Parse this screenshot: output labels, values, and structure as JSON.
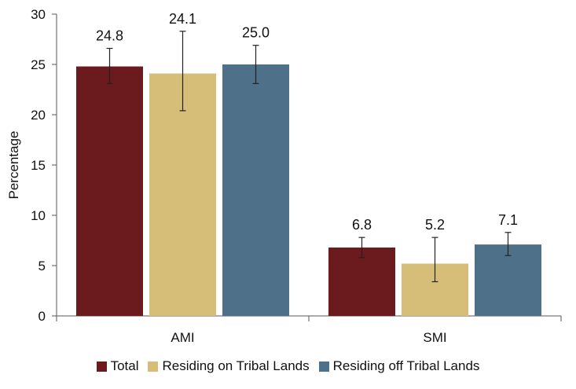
{
  "chart_data": {
    "type": "bar",
    "categories": [
      "AMI",
      "SMI"
    ],
    "series": [
      {
        "name": "Total",
        "color": "#6b1a1e",
        "values": [
          24.8,
          6.8
        ],
        "error_low": [
          23.1,
          5.8
        ],
        "error_high": [
          26.6,
          7.8
        ]
      },
      {
        "name": "Residing on Tribal Lands",
        "color": "#d6bd78",
        "values": [
          24.1,
          5.2
        ],
        "error_low": [
          20.4,
          3.4
        ],
        "error_high": [
          28.3,
          7.8
        ]
      },
      {
        "name": "Residing off Tribal Lands",
        "color": "#4e7089",
        "values": [
          25.0,
          7.1
        ],
        "error_low": [
          23.1,
          6.0
        ],
        "error_high": [
          26.9,
          8.3
        ]
      }
    ],
    "value_labels": [
      [
        "24.8",
        "6.8"
      ],
      [
        "24.1",
        "5.2"
      ],
      [
        "25.0",
        "7.1"
      ]
    ],
    "ylabel": "Percentage",
    "xlabel": "",
    "ylim": [
      0,
      30
    ],
    "yticks": [
      0,
      5,
      10,
      15,
      20,
      25,
      30
    ],
    "ytick_labels": [
      "0",
      "5",
      "10",
      "15",
      "20",
      "25",
      "30"
    ],
    "grid": false,
    "legend_position": "bottom"
  }
}
